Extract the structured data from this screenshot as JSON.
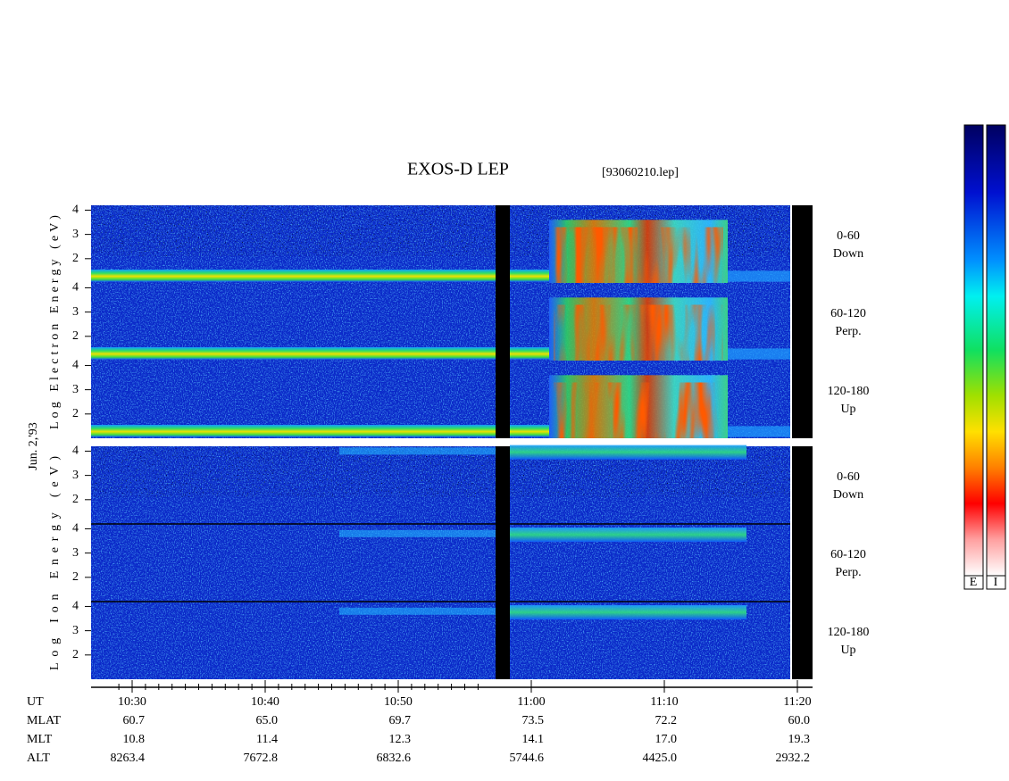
{
  "chart_data": {
    "type": "spectrogram",
    "title": "EXOS-D LEP",
    "subtitle": "[93060210.lep]",
    "date_label": "Jun. 2,'93",
    "ylim": [
      1,
      4.2
    ],
    "yticks": [
      2,
      3,
      4
    ],
    "groups": [
      {
        "ylabel": "Log Electron Energy (eV)",
        "panels": [
          {
            "range": "0-60",
            "direction": "Down"
          },
          {
            "range": "60-120",
            "direction": "Perp."
          },
          {
            "range": "120-180",
            "direction": "Up"
          }
        ]
      },
      {
        "ylabel": "Log Ion Energy (eV)",
        "panels": [
          {
            "range": "0-60",
            "direction": "Down"
          },
          {
            "range": "60-120",
            "direction": "Perp."
          },
          {
            "range": "120-180",
            "direction": "Up"
          }
        ]
      }
    ],
    "x_label": "UT",
    "x": [
      "10:30",
      "10:40",
      "10:50",
      "11:00",
      "11:10",
      "11:20"
    ],
    "ephemeris": [
      {
        "label": "MLAT",
        "values": [
          "60.7",
          "65.0",
          "69.7",
          "73.5",
          "72.2",
          "60.0"
        ]
      },
      {
        "label": "MLT",
        "values": [
          "10.8",
          "11.4",
          "12.3",
          "14.1",
          "17.0",
          "19.3"
        ]
      },
      {
        "label": "ALT",
        "values": [
          "8263.4",
          "7672.8",
          "6832.6",
          "5744.6",
          "4425.0",
          "2932.2"
        ]
      }
    ],
    "colorbar_labels": [
      "E",
      "I"
    ]
  }
}
